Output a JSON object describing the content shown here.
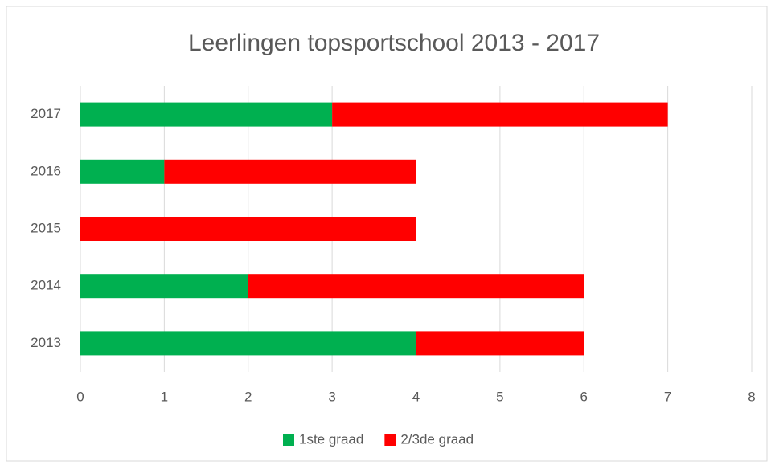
{
  "chart_data": {
    "type": "bar",
    "orientation": "horizontal",
    "stacked": true,
    "title": "Leerlingen topsportschool 2013 - 2017",
    "categories": [
      "2013",
      "2014",
      "2015",
      "2016",
      "2017"
    ],
    "series": [
      {
        "name": "1ste graad",
        "color": "#00b050",
        "values": [
          4,
          2,
          0,
          1,
          3
        ]
      },
      {
        "name": "2/3de graad",
        "color": "#ff0000",
        "values": [
          2,
          4,
          4,
          3,
          4
        ]
      }
    ],
    "xlim": [
      0,
      8
    ],
    "xticks": [
      0,
      1,
      2,
      3,
      4,
      5,
      6,
      7,
      8
    ],
    "grid": true,
    "legend": "bottom"
  }
}
